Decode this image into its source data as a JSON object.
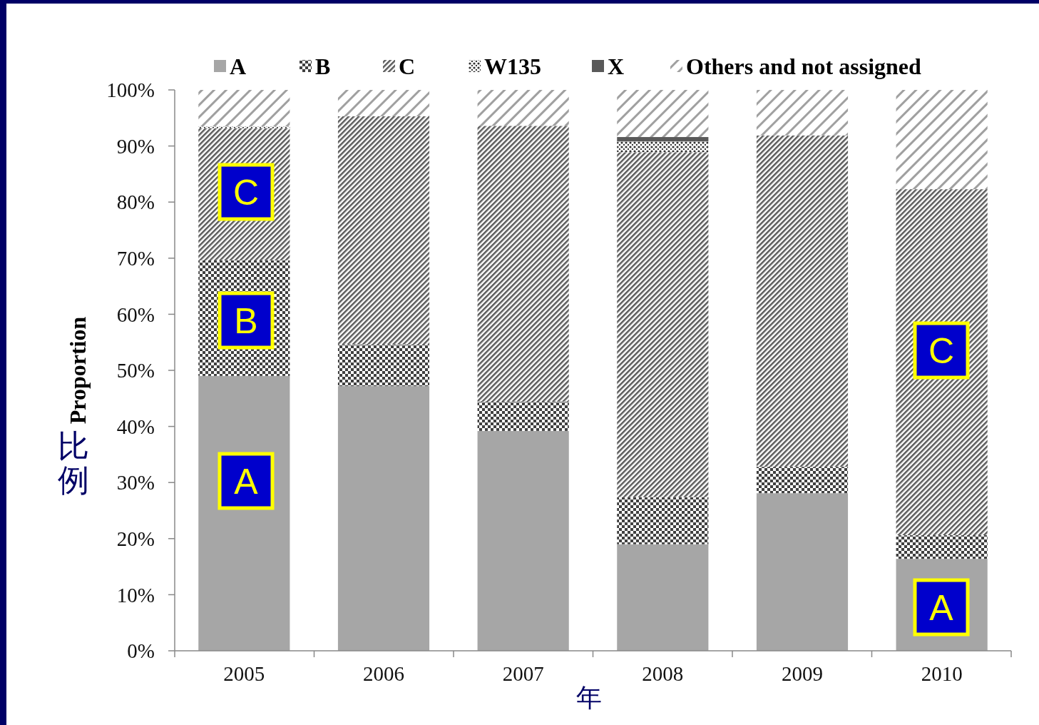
{
  "chart_data": {
    "type": "bar",
    "stacked": true,
    "xlabel": "年",
    "ylabel": "Proportion",
    "categories": [
      "2005",
      "2006",
      "2007",
      "2008",
      "2009",
      "2010"
    ],
    "series": [
      {
        "name": "A",
        "color": "#a6a6a6",
        "values": [
          49.0,
          47.2,
          39.2,
          19.0,
          28.1,
          16.4
        ]
      },
      {
        "name": "B",
        "color": "#404040",
        "values": [
          20.6,
          7.4,
          5.2,
          8.4,
          4.7,
          4.2
        ]
      },
      {
        "name": "C",
        "color": "#5a5a5a",
        "values": [
          23.6,
          40.7,
          49.2,
          61.5,
          59.1,
          61.7
        ]
      },
      {
        "name": "W135",
        "color": "#303030",
        "values": [
          0.3,
          0,
          0,
          1.9,
          0,
          0
        ]
      },
      {
        "name": "X",
        "color": "#595959",
        "values": [
          0,
          0,
          0,
          0.8,
          0,
          0
        ]
      },
      {
        "name": "Others and not assigned",
        "color": "#a0a0a0",
        "values": [
          6.5,
          4.7,
          6.4,
          8.4,
          8.1,
          17.7
        ]
      }
    ],
    "ylim": [
      0,
      100
    ],
    "yticks": [
      {
        "value": 0,
        "label": "0%"
      },
      {
        "value": 10,
        "label": "10%"
      },
      {
        "value": 20,
        "label": "20%"
      },
      {
        "value": 30,
        "label": "30%"
      },
      {
        "value": 40,
        "label": "40%"
      },
      {
        "value": 50,
        "label": "50%"
      },
      {
        "value": 60,
        "label": "60%"
      },
      {
        "value": 70,
        "label": "70%"
      },
      {
        "value": 80,
        "label": "80%"
      },
      {
        "value": 90,
        "label": "90%"
      },
      {
        "value": 100,
        "label": "100%"
      }
    ],
    "legend": "top",
    "grid": false,
    "annotations": [
      "C",
      "B",
      "A",
      "C",
      "A",
      "比例"
    ]
  }
}
